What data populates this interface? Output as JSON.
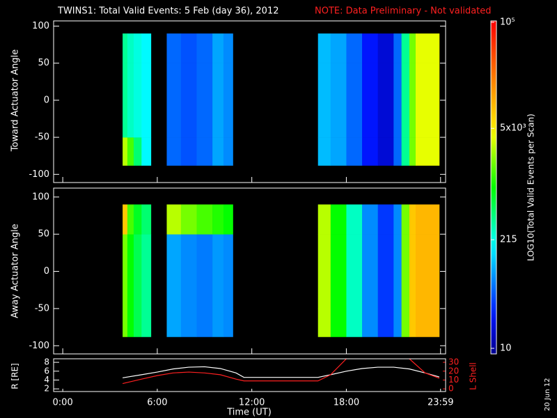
{
  "page": {
    "stamp": "20 Jun 12"
  },
  "chart_data": [
    {
      "type": "heatmap",
      "title": "TWINS1: Total Valid Events:  5 Feb (day  36), 2012",
      "note": "NOTE: Data Preliminary - Not validated",
      "ylabel": "Toward Actuator Angle",
      "xlim": [
        -0.58,
        24.3
      ],
      "ylim": [
        -111,
        107
      ],
      "yticks": [
        -100,
        -50,
        0,
        50,
        100
      ],
      "zlabel": "LOG10(Total Valid Events per Scan)",
      "zlim": [
        10,
        100000
      ],
      "zticks": [
        10,
        215,
        {
          "value": 5000,
          "label": "5x10³"
        },
        {
          "value": 100000,
          "label": "10⁵"
        }
      ],
      "x": [
        3.8,
        4.1,
        4.5,
        5.0,
        5.6,
        6.6,
        7.5,
        8.5,
        9.5,
        10.2,
        10.8,
        16.2,
        17.0,
        18.0,
        19.0,
        20.0,
        21.0,
        21.5,
        22.0,
        22.4,
        23.9
      ],
      "y": [
        -88,
        -50,
        50,
        90
      ],
      "values": [
        [
          3000,
          1500,
          500,
          200,
          null,
          60,
          50,
          60,
          100,
          80,
          null,
          120,
          100,
          60,
          30,
          20,
          60,
          400,
          2000,
          4000
        ],
        [
          400,
          300,
          250,
          200,
          null,
          60,
          50,
          60,
          100,
          80,
          null,
          120,
          100,
          60,
          30,
          20,
          60,
          400,
          2000,
          4000
        ],
        [
          400,
          300,
          250,
          200,
          null,
          60,
          50,
          60,
          100,
          80,
          null,
          120,
          100,
          60,
          30,
          20,
          60,
          400,
          2000,
          4000
        ]
      ]
    },
    {
      "type": "heatmap",
      "ylabel": "Away Actuator Angle",
      "xlim": [
        -0.58,
        24.3
      ],
      "ylim": [
        -111,
        112
      ],
      "yticks": [
        -100,
        -50,
        0,
        50,
        100
      ],
      "x": [
        3.8,
        4.1,
        4.5,
        5.0,
        5.6,
        6.6,
        7.5,
        8.5,
        9.5,
        10.2,
        10.8,
        16.2,
        17.0,
        18.0,
        19.0,
        20.0,
        21.0,
        21.5,
        22.0,
        22.4,
        23.9
      ],
      "y": [
        -88,
        -50,
        50,
        90
      ],
      "values": [
        [
          2000,
          1000,
          600,
          400,
          null,
          100,
          80,
          70,
          90,
          80,
          null,
          3000,
          1000,
          300,
          80,
          40,
          80,
          2000,
          8000,
          10000
        ],
        [
          2000,
          1000,
          600,
          400,
          null,
          100,
          80,
          70,
          90,
          80,
          null,
          3000,
          1000,
          300,
          80,
          40,
          80,
          2000,
          8000,
          10000
        ],
        [
          8000,
          1500,
          800,
          500,
          null,
          3000,
          2000,
          1500,
          1200,
          1000,
          null,
          3000,
          1000,
          300,
          80,
          40,
          80,
          2000,
          8000,
          10000
        ]
      ]
    },
    {
      "type": "line",
      "xlabel": "Time (UT)",
      "ylabel": "R [RE]",
      "y2label": "L Shell",
      "xlim": [
        -0.58,
        24.3
      ],
      "xticks": [
        {
          "value": 0,
          "label": "0:00"
        },
        {
          "value": 6,
          "label": "6:00"
        },
        {
          "value": 12,
          "label": "12:00"
        },
        {
          "value": 18,
          "label": "18:00"
        },
        {
          "value": 23.98,
          "label": "23:59"
        }
      ],
      "ylim": [
        1.4,
        8.8
      ],
      "yticks": [
        2,
        4,
        6,
        8
      ],
      "y2lim": [
        -3,
        34
      ],
      "y2ticks": [
        0,
        10,
        20,
        30
      ],
      "x": [
        3.8,
        5,
        6,
        7,
        8,
        9,
        10,
        11,
        11.5,
        16.2,
        17,
        18,
        19,
        20,
        21,
        22,
        23,
        23.9
      ],
      "series": [
        {
          "name": "R",
          "color": "#ffffff",
          "values": [
            4.5,
            5.2,
            5.8,
            6.5,
            6.9,
            7.0,
            6.6,
            5.6,
            4.6,
            4.6,
            5.2,
            6.0,
            6.6,
            6.9,
            6.9,
            6.5,
            5.6,
            4.7
          ]
        },
        {
          "name": "L Shell",
          "color": "#ff2020",
          "axis": "y2",
          "values": [
            6,
            11,
            15,
            18,
            19,
            18,
            16,
            11,
            9,
            9,
            16,
            34,
            null,
            null,
            null,
            34,
            18,
            12
          ]
        }
      ]
    }
  ]
}
